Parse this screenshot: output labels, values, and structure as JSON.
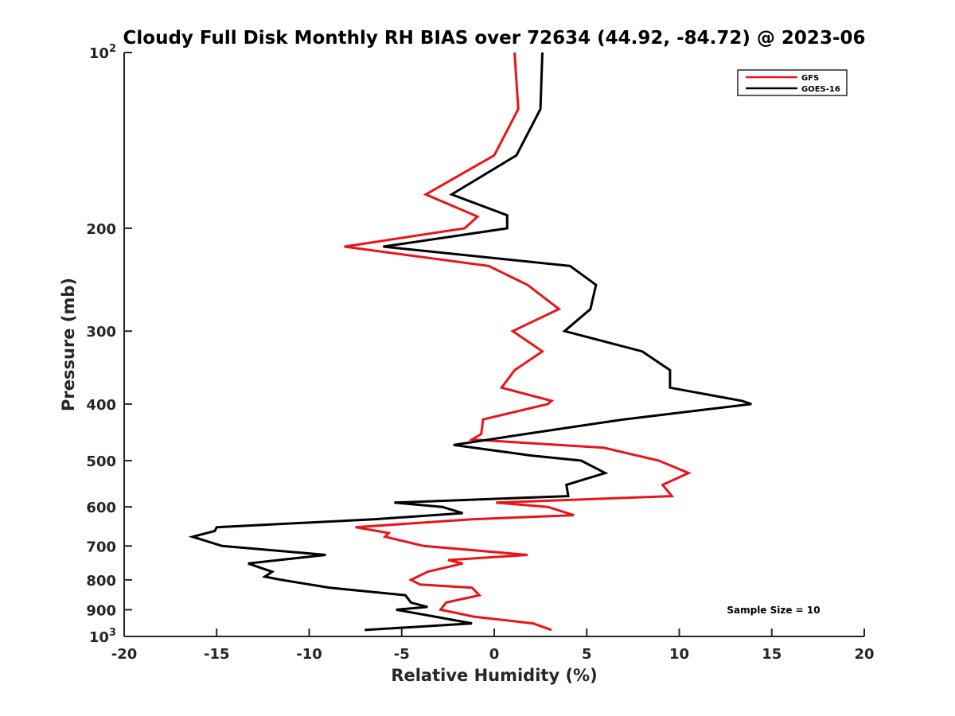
{
  "chart_data": {
    "type": "line",
    "title": "Cloudy Full Disk Monthly RH BIAS over 72634 (44.92, -84.72) @ 2023-06",
    "xlabel": "Relative Humidity (%)",
    "ylabel": "Pressure (mb)",
    "xlim": [
      -20,
      20
    ],
    "ylim": [
      100,
      1000
    ],
    "y_scale": "log",
    "y_reversed": true,
    "grid": false,
    "legend_position": "top-right",
    "xticks": [
      -20,
      -15,
      -10,
      -5,
      0,
      5,
      10,
      15,
      20
    ],
    "xtick_labels": [
      "-20",
      "-15",
      "-10",
      "-5",
      "0",
      "5",
      "10",
      "15",
      "20"
    ],
    "yticks": [
      100,
      200,
      300,
      400,
      500,
      600,
      700,
      800,
      900,
      1000
    ],
    "ytick_labels": [
      {
        "value": 100,
        "base": "10",
        "exp": "2"
      },
      {
        "value": 200,
        "base": "200",
        "exp": ""
      },
      {
        "value": 300,
        "base": "300",
        "exp": ""
      },
      {
        "value": 400,
        "base": "400",
        "exp": ""
      },
      {
        "value": 500,
        "base": "500",
        "exp": ""
      },
      {
        "value": 600,
        "base": "600",
        "exp": ""
      },
      {
        "value": 700,
        "base": "700",
        "exp": ""
      },
      {
        "value": 800,
        "base": "800",
        "exp": ""
      },
      {
        "value": 900,
        "base": "900",
        "exp": ""
      },
      {
        "value": 1000,
        "base": "10",
        "exp": "3"
      }
    ],
    "annotation": "Sample Size = 10",
    "series": [
      {
        "name": "GFS",
        "color": "#e8141a",
        "points": [
          [
            1.1,
            100
          ],
          [
            1.3,
            125
          ],
          [
            0,
            150
          ],
          [
            -3.7,
            175
          ],
          [
            -0.9,
            191
          ],
          [
            -1.6,
            200
          ],
          [
            -8.1,
            215
          ],
          [
            -0.3,
            232
          ],
          [
            1.8,
            250
          ],
          [
            3.5,
            275
          ],
          [
            1,
            300
          ],
          [
            2.6,
            325
          ],
          [
            1.1,
            350
          ],
          [
            0.4,
            375
          ],
          [
            3.1,
            395
          ],
          [
            2.9,
            400
          ],
          [
            -0.6,
            425
          ],
          [
            -0.7,
            450
          ],
          [
            -1.2,
            460
          ],
          [
            5.9,
            475
          ],
          [
            8.9,
            500
          ],
          [
            10.5,
            525
          ],
          [
            9.1,
            550
          ],
          [
            9.6,
            575
          ],
          [
            0.1,
            590
          ],
          [
            2.9,
            600
          ],
          [
            4.3,
            620
          ],
          [
            -1.2,
            630
          ],
          [
            -7.5,
            650
          ],
          [
            -5.7,
            665
          ],
          [
            -5.9,
            675
          ],
          [
            -3.8,
            700
          ],
          [
            1.8,
            725
          ],
          [
            -2.5,
            740
          ],
          [
            -1.7,
            750
          ],
          [
            -3.6,
            775
          ],
          [
            -4.5,
            800
          ],
          [
            -4,
            815
          ],
          [
            -1.2,
            825
          ],
          [
            -0.8,
            850
          ],
          [
            -2.6,
            875
          ],
          [
            -2.9,
            900
          ],
          [
            -1.1,
            925
          ],
          [
            2.1,
            950
          ],
          [
            3.1,
            975
          ]
        ]
      },
      {
        "name": "GOES-16",
        "color": "#000000",
        "points": [
          [
            2.6,
            100
          ],
          [
            2.5,
            125
          ],
          [
            1.2,
            150
          ],
          [
            -2.3,
            175
          ],
          [
            0.7,
            190
          ],
          [
            0.7,
            200
          ],
          [
            -6.0,
            215
          ],
          [
            4.1,
            232
          ],
          [
            5.5,
            250
          ],
          [
            5.2,
            275
          ],
          [
            3.8,
            300
          ],
          [
            8,
            325
          ],
          [
            9.5,
            350
          ],
          [
            9.5,
            375
          ],
          [
            13.4,
            395
          ],
          [
            13.9,
            400
          ],
          [
            7,
            425
          ],
          [
            1.7,
            450
          ],
          [
            -2.2,
            470
          ],
          [
            2,
            490
          ],
          [
            4.7,
            500
          ],
          [
            6,
            525
          ],
          [
            3.9,
            550
          ],
          [
            4,
            575
          ],
          [
            -5.4,
            590
          ],
          [
            -2.8,
            600
          ],
          [
            -1.7,
            615
          ],
          [
            -6.5,
            630
          ],
          [
            -15,
            650
          ],
          [
            -15.1,
            660
          ],
          [
            -16.3,
            675
          ],
          [
            -14.7,
            700
          ],
          [
            -9.1,
            725
          ],
          [
            -13.3,
            750
          ],
          [
            -12,
            775
          ],
          [
            -12.4,
            790
          ],
          [
            -11.5,
            800
          ],
          [
            -8.9,
            825
          ],
          [
            -4.8,
            850
          ],
          [
            -4.5,
            875
          ],
          [
            -3.6,
            890
          ],
          [
            -5.3,
            900
          ],
          [
            -3.2,
            925
          ],
          [
            -1.2,
            950
          ],
          [
            -7,
            975
          ]
        ]
      }
    ]
  }
}
